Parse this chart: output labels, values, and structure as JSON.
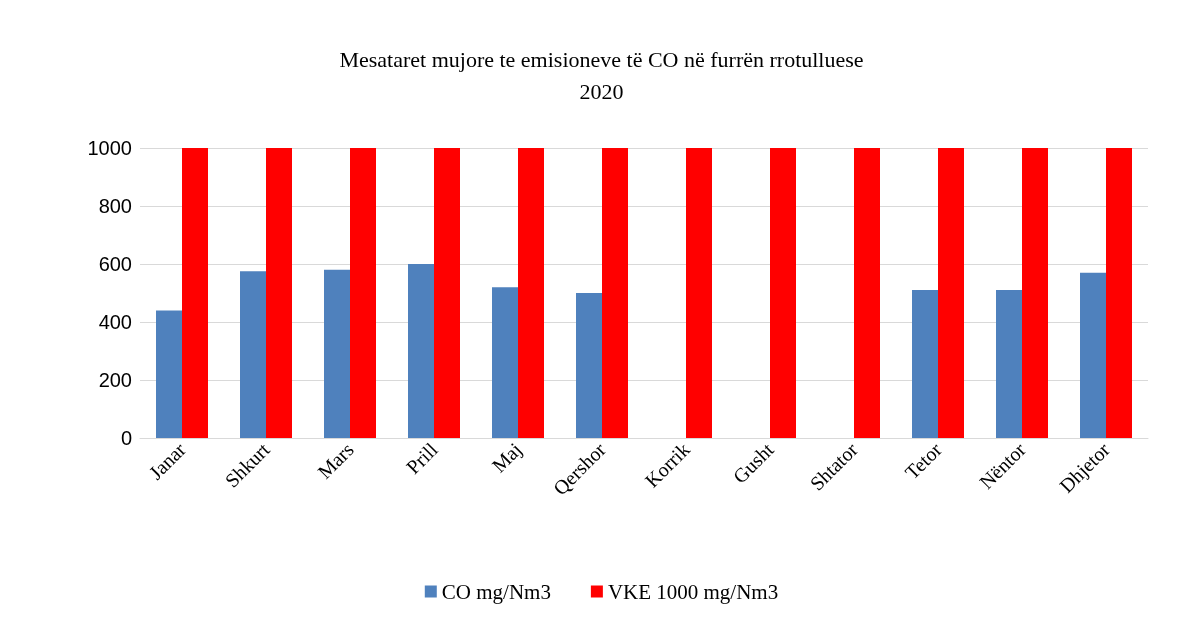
{
  "chart_data": {
    "type": "bar",
    "title": "Mesataret mujore te emisioneve të CO në furrën rrotulluese",
    "subtitle": "2020",
    "categories": [
      "Janar",
      "Shkurt",
      "Mars",
      "Prill",
      "Maj",
      "Qershor",
      "Korrik",
      "Gusht",
      "Shtator",
      "Tetor",
      "Nëntor",
      "Dhjetor"
    ],
    "series": [
      {
        "name": "CO mg/Nm3",
        "color": "#4f81bd",
        "values": [
          440,
          575,
          580,
          600,
          520,
          500,
          null,
          null,
          null,
          510,
          510,
          570
        ]
      },
      {
        "name": "VKE 1000 mg/Nm3",
        "color": "#ff0000",
        "values": [
          1000,
          1000,
          1000,
          1000,
          1000,
          1000,
          1000,
          1000,
          1000,
          1000,
          1000,
          1000
        ]
      }
    ],
    "ylim": [
      0,
      1000
    ],
    "yticks": [
      0,
      200,
      400,
      600,
      800,
      1000
    ],
    "grid": "y",
    "legend": "bottom"
  }
}
